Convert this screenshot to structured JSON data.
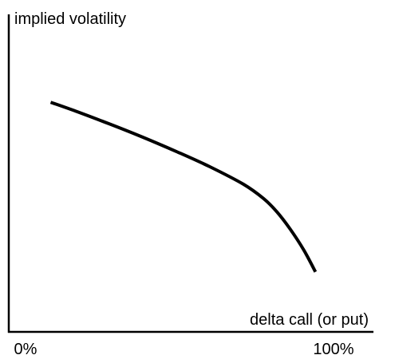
{
  "chart_data": {
    "type": "line",
    "title": "",
    "ylabel": "implied volatility",
    "xlabel": "delta call (or put)",
    "x_tick_labels": [
      "0%",
      "100%"
    ],
    "x_ticks": [
      0,
      100
    ],
    "xlim": [
      0,
      100
    ],
    "ylim": [
      0,
      100
    ],
    "grid": false,
    "series": [
      {
        "x": [
          12.5,
          20,
          30,
          40,
          50,
          60,
          70,
          76,
          80,
          84,
          88,
          91.5
        ],
        "y": [
          72.3,
          69.5,
          65.5,
          61.3,
          56.8,
          52.0,
          46.5,
          42.0,
          37.8,
          32.3,
          25.8,
          18.9
        ]
      }
    ],
    "colors": {
      "line": "#000000",
      "axes": "#000000",
      "text": "#000000"
    }
  }
}
